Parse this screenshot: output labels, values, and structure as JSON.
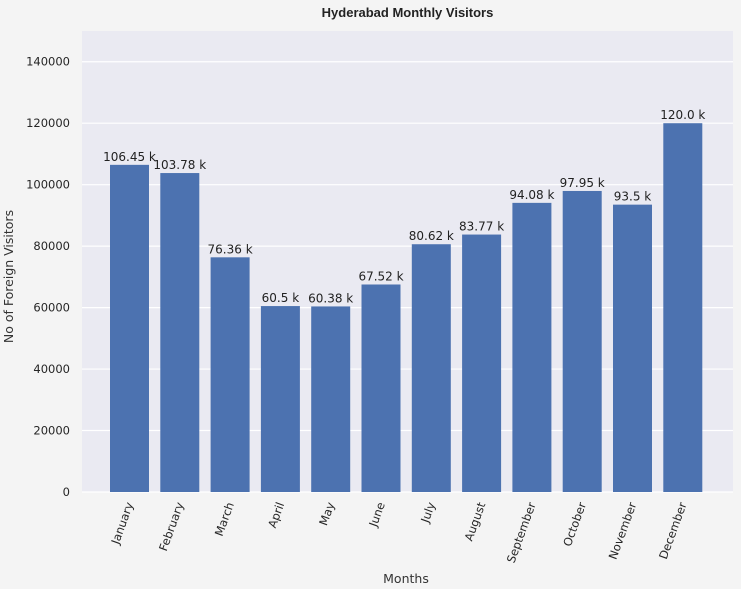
{
  "chart_data": {
    "type": "bar",
    "title": "Hyderabad Monthly Visitors",
    "xlabel": "Months",
    "ylabel": "No of Foreign Visitors",
    "categories": [
      "January",
      "February",
      "March",
      "April",
      "May",
      "June",
      "July",
      "August",
      "September",
      "October",
      "November",
      "December"
    ],
    "values": [
      106450,
      103780,
      76360,
      60500,
      60380,
      67520,
      80620,
      83770,
      94080,
      97950,
      93500,
      120000
    ],
    "data_labels": [
      "106.45 k",
      "103.78 k",
      "76.36 k",
      "60.5 k",
      "60.38 k",
      "67.52 k",
      "80.62 k",
      "83.77 k",
      "94.08 k",
      "97.95 k",
      "93.5 k",
      "120.0 k"
    ],
    "ylim": [
      0,
      150000
    ],
    "yticks": [
      0,
      20000,
      40000,
      60000,
      80000,
      100000,
      120000,
      140000
    ],
    "ytick_labels": [
      "0",
      "20000",
      "40000",
      "60000",
      "80000",
      "100000",
      "120000",
      "140000"
    ],
    "grid": true,
    "colors": {
      "bar": "#4c72b0",
      "plot_bg": "#eaeaf2",
      "grid": "#ffffff",
      "figure_bg": "#f4f4f4"
    }
  }
}
